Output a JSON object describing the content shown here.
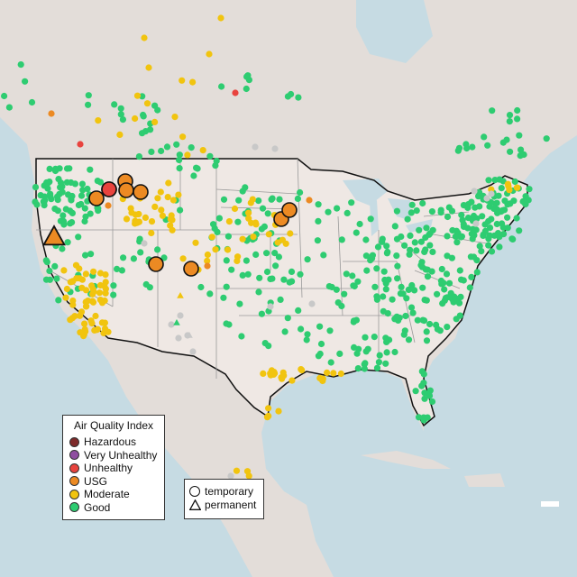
{
  "legend": {
    "title": "Air Quality Index",
    "categories": [
      {
        "label": "Hazardous",
        "color": "#7e2a2a"
      },
      {
        "label": "Very Unhealthy",
        "color": "#8f4fa0"
      },
      {
        "label": "Unhealthy",
        "color": "#e8433e"
      },
      {
        "label": "USG",
        "color": "#ec8a23"
      },
      {
        "label": "Moderate",
        "color": "#f1c40f"
      },
      {
        "label": "Good",
        "color": "#2ecc71"
      }
    ]
  },
  "shape_legend": {
    "temporary": "temporary",
    "permanent": "permanent"
  },
  "colors": {
    "water": "#c6dbe3",
    "land_us": "#efe8e4",
    "land_other": "#e3ddd9",
    "no_data": "#c8c8c8"
  }
}
